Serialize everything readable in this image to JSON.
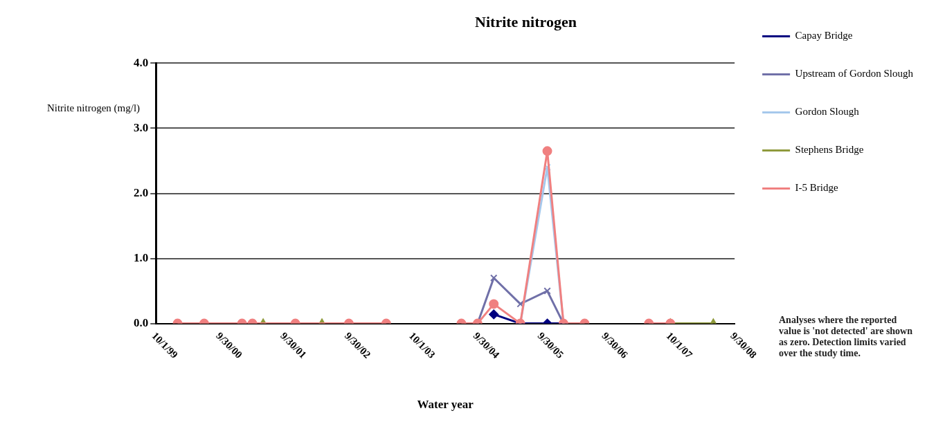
{
  "chart_data": {
    "type": "line",
    "title": "Nitrite nitrogen",
    "xlabel": "Water year",
    "ylabel": "Nitrite nitrogen (mg/l)",
    "x": [
      "2000-02",
      "2000-07",
      "2001-02",
      "2001-04",
      "2001-12",
      "2002-10",
      "2003-05",
      "2003-12",
      "2004-07",
      "2004-10",
      "2005-01",
      "2005-06",
      "2005-11",
      "2006-02",
      "2006-06",
      "2007-01",
      "2007-06",
      "2007-10"
    ],
    "series": [
      {
        "name": "Capay Bridge",
        "color": "#000080",
        "marker": "diamond",
        "values": [
          null,
          null,
          null,
          null,
          null,
          null,
          null,
          null,
          null,
          null,
          0.14,
          0,
          0,
          0,
          null,
          null,
          null,
          null
        ]
      },
      {
        "name": "Upstream of Gordon Slough",
        "color": "#7070a8",
        "marker": "cross",
        "values": [
          null,
          null,
          null,
          null,
          null,
          null,
          null,
          null,
          null,
          0,
          0.7,
          0.3,
          0.5,
          0,
          null,
          null,
          null,
          null
        ]
      },
      {
        "name": "Gordon Slough",
        "color": "#a6c8ec",
        "marker": "cross",
        "values": [
          null,
          null,
          null,
          null,
          null,
          null,
          null,
          null,
          null,
          null,
          null,
          0,
          2.4,
          0,
          null,
          null,
          null,
          null
        ]
      },
      {
        "name": "Stephens Bridge",
        "color": "#8f9a3c",
        "marker": "triangle",
        "x": [
          "2001-06",
          "2001-12",
          "2002-05",
          "2005-01",
          "2007-10",
          "2008-06"
        ],
        "values": [
          0,
          null,
          0,
          null,
          0,
          0
        ]
      },
      {
        "name": "I-5 Bridge",
        "color": "#f08080",
        "marker": "circle",
        "values": [
          0,
          0,
          0,
          0,
          0,
          0,
          0,
          null,
          0,
          0,
          0.3,
          0,
          2.65,
          0,
          0,
          null,
          0,
          0
        ]
      }
    ],
    "xlim": [
      "1999-10-01",
      "2008-09-30"
    ],
    "xticks": [
      {
        "value": "1999-10-01",
        "label": "10/1/99"
      },
      {
        "value": "2000-09-30",
        "label": "9/30/00"
      },
      {
        "value": "2001-09-30",
        "label": "9/30/01"
      },
      {
        "value": "2002-09-30",
        "label": "9/30/02"
      },
      {
        "value": "2003-10-01",
        "label": "10/1/03"
      },
      {
        "value": "2004-09-30",
        "label": "9/30/04"
      },
      {
        "value": "2005-09-30",
        "label": "9/30/05"
      },
      {
        "value": "2006-09-30",
        "label": "9/30/06"
      },
      {
        "value": "2007-10-01",
        "label": "10/1/07"
      },
      {
        "value": "2008-09-30",
        "label": "9/30/08"
      }
    ],
    "ylim": [
      0,
      4
    ],
    "yticks": [
      {
        "value": 0,
        "label": "0.0"
      },
      {
        "value": 1,
        "label": "1.0"
      },
      {
        "value": 2,
        "label": "2.0"
      },
      {
        "value": 3,
        "label": "3.0"
      },
      {
        "value": 4,
        "label": "4.0"
      }
    ],
    "grid": "y",
    "legend": "right",
    "line_style": "solid",
    "annotations": [
      "Analyses where the reported value is 'not detected' are shown as zero. Detection limits varied over the study time."
    ]
  }
}
